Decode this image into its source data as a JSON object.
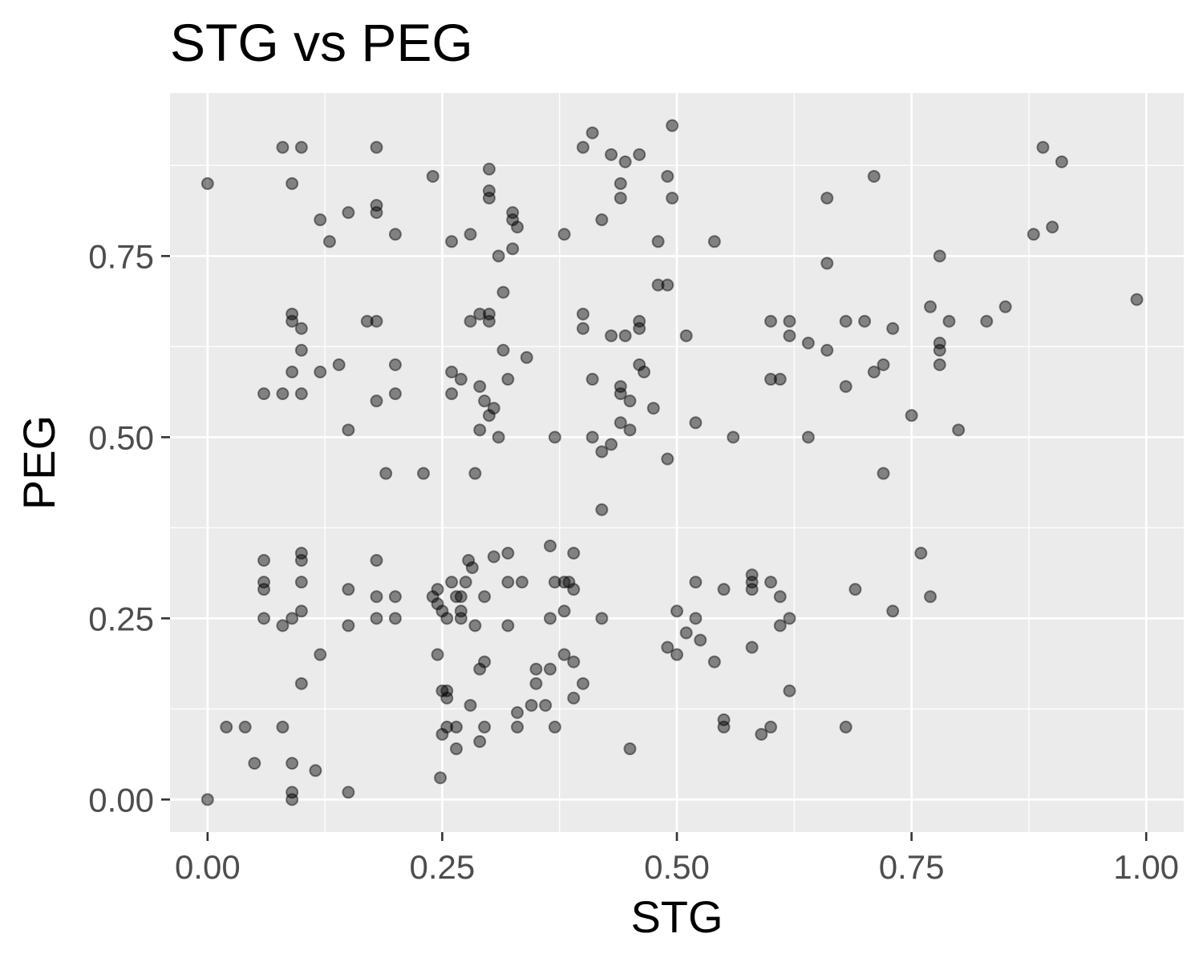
{
  "chart_data": {
    "type": "scatter",
    "title": "STG vs PEG",
    "xlabel": "STG",
    "ylabel": "PEG",
    "xlim": [
      -0.04,
      1.04
    ],
    "ylim": [
      -0.045,
      0.975
    ],
    "x_ticks": [
      0.0,
      0.25,
      0.5,
      0.75,
      1.0
    ],
    "x_tick_labels": [
      "0.00",
      "0.25",
      "0.50",
      "0.75",
      "1.00"
    ],
    "y_ticks": [
      0.0,
      0.25,
      0.5,
      0.75
    ],
    "y_tick_labels": [
      "0.00",
      "0.25",
      "0.50",
      "0.75"
    ],
    "grid": true,
    "point_color": "#000000",
    "point_opacity": 0.45,
    "panel_background": "#ebebeb",
    "points": [
      [
        0.0,
        0.85
      ],
      [
        0.08,
        0.9
      ],
      [
        0.1,
        0.9
      ],
      [
        0.18,
        0.9
      ],
      [
        0.09,
        0.85
      ],
      [
        0.24,
        0.86
      ],
      [
        0.12,
        0.8
      ],
      [
        0.13,
        0.77
      ],
      [
        0.15,
        0.81
      ],
      [
        0.18,
        0.82
      ],
      [
        0.18,
        0.81
      ],
      [
        0.2,
        0.78
      ],
      [
        0.26,
        0.77
      ],
      [
        0.28,
        0.78
      ],
      [
        0.3,
        0.87
      ],
      [
        0.3,
        0.84
      ],
      [
        0.3,
        0.83
      ],
      [
        0.325,
        0.81
      ],
      [
        0.325,
        0.8
      ],
      [
        0.33,
        0.79
      ],
      [
        0.325,
        0.76
      ],
      [
        0.31,
        0.75
      ],
      [
        0.4,
        0.9
      ],
      [
        0.41,
        0.92
      ],
      [
        0.43,
        0.89
      ],
      [
        0.445,
        0.88
      ],
      [
        0.46,
        0.89
      ],
      [
        0.495,
        0.93
      ],
      [
        0.44,
        0.85
      ],
      [
        0.49,
        0.86
      ],
      [
        0.44,
        0.83
      ],
      [
        0.495,
        0.83
      ],
      [
        0.42,
        0.8
      ],
      [
        0.38,
        0.78
      ],
      [
        0.48,
        0.77
      ],
      [
        0.54,
        0.77
      ],
      [
        0.48,
        0.71
      ],
      [
        0.49,
        0.71
      ],
      [
        0.66,
        0.83
      ],
      [
        0.71,
        0.86
      ],
      [
        0.66,
        0.74
      ],
      [
        0.89,
        0.9
      ],
      [
        0.91,
        0.88
      ],
      [
        0.88,
        0.78
      ],
      [
        0.9,
        0.79
      ],
      [
        0.78,
        0.75
      ],
      [
        0.99,
        0.69
      ],
      [
        0.09,
        0.67
      ],
      [
        0.09,
        0.66
      ],
      [
        0.1,
        0.65
      ],
      [
        0.1,
        0.62
      ],
      [
        0.17,
        0.66
      ],
      [
        0.18,
        0.66
      ],
      [
        0.14,
        0.6
      ],
      [
        0.2,
        0.6
      ],
      [
        0.09,
        0.59
      ],
      [
        0.12,
        0.59
      ],
      [
        0.06,
        0.56
      ],
      [
        0.08,
        0.56
      ],
      [
        0.1,
        0.56
      ],
      [
        0.18,
        0.55
      ],
      [
        0.2,
        0.56
      ],
      [
        0.15,
        0.51
      ],
      [
        0.19,
        0.45
      ],
      [
        0.23,
        0.45
      ],
      [
        0.28,
        0.66
      ],
      [
        0.29,
        0.67
      ],
      [
        0.3,
        0.67
      ],
      [
        0.3,
        0.66
      ],
      [
        0.315,
        0.7
      ],
      [
        0.315,
        0.62
      ],
      [
        0.34,
        0.61
      ],
      [
        0.26,
        0.59
      ],
      [
        0.27,
        0.58
      ],
      [
        0.32,
        0.58
      ],
      [
        0.29,
        0.57
      ],
      [
        0.26,
        0.56
      ],
      [
        0.295,
        0.55
      ],
      [
        0.305,
        0.54
      ],
      [
        0.3,
        0.53
      ],
      [
        0.29,
        0.51
      ],
      [
        0.31,
        0.5
      ],
      [
        0.285,
        0.45
      ],
      [
        0.37,
        0.5
      ],
      [
        0.4,
        0.67
      ],
      [
        0.4,
        0.65
      ],
      [
        0.43,
        0.64
      ],
      [
        0.445,
        0.64
      ],
      [
        0.46,
        0.66
      ],
      [
        0.46,
        0.65
      ],
      [
        0.51,
        0.64
      ],
      [
        0.41,
        0.58
      ],
      [
        0.46,
        0.6
      ],
      [
        0.465,
        0.59
      ],
      [
        0.44,
        0.57
      ],
      [
        0.44,
        0.56
      ],
      [
        0.45,
        0.55
      ],
      [
        0.475,
        0.54
      ],
      [
        0.44,
        0.52
      ],
      [
        0.45,
        0.51
      ],
      [
        0.52,
        0.52
      ],
      [
        0.41,
        0.5
      ],
      [
        0.43,
        0.49
      ],
      [
        0.42,
        0.48
      ],
      [
        0.49,
        0.47
      ],
      [
        0.56,
        0.5
      ],
      [
        0.42,
        0.4
      ],
      [
        0.6,
        0.66
      ],
      [
        0.62,
        0.66
      ],
      [
        0.62,
        0.64
      ],
      [
        0.64,
        0.63
      ],
      [
        0.66,
        0.62
      ],
      [
        0.68,
        0.66
      ],
      [
        0.7,
        0.66
      ],
      [
        0.73,
        0.65
      ],
      [
        0.6,
        0.58
      ],
      [
        0.61,
        0.58
      ],
      [
        0.68,
        0.57
      ],
      [
        0.71,
        0.59
      ],
      [
        0.72,
        0.6
      ],
      [
        0.64,
        0.5
      ],
      [
        0.75,
        0.53
      ],
      [
        0.72,
        0.45
      ],
      [
        0.77,
        0.68
      ],
      [
        0.79,
        0.66
      ],
      [
        0.78,
        0.63
      ],
      [
        0.78,
        0.62
      ],
      [
        0.78,
        0.6
      ],
      [
        0.83,
        0.66
      ],
      [
        0.85,
        0.68
      ],
      [
        0.8,
        0.51
      ],
      [
        0.06,
        0.33
      ],
      [
        0.06,
        0.3
      ],
      [
        0.06,
        0.29
      ],
      [
        0.06,
        0.25
      ],
      [
        0.1,
        0.34
      ],
      [
        0.1,
        0.33
      ],
      [
        0.1,
        0.3
      ],
      [
        0.1,
        0.26
      ],
      [
        0.09,
        0.25
      ],
      [
        0.08,
        0.24
      ],
      [
        0.15,
        0.29
      ],
      [
        0.15,
        0.24
      ],
      [
        0.18,
        0.33
      ],
      [
        0.18,
        0.28
      ],
      [
        0.18,
        0.25
      ],
      [
        0.2,
        0.28
      ],
      [
        0.2,
        0.25
      ],
      [
        0.12,
        0.2
      ],
      [
        0.1,
        0.16
      ],
      [
        0.02,
        0.1
      ],
      [
        0.04,
        0.1
      ],
      [
        0.08,
        0.1
      ],
      [
        0.05,
        0.05
      ],
      [
        0.09,
        0.05
      ],
      [
        0.115,
        0.04
      ],
      [
        0.09,
        0.01
      ],
      [
        0.09,
        0.0
      ],
      [
        0.15,
        0.01
      ],
      [
        0.0,
        0.0
      ],
      [
        0.24,
        0.28
      ],
      [
        0.245,
        0.29
      ],
      [
        0.245,
        0.27
      ],
      [
        0.25,
        0.26
      ],
      [
        0.255,
        0.25
      ],
      [
        0.26,
        0.3
      ],
      [
        0.265,
        0.28
      ],
      [
        0.27,
        0.28
      ],
      [
        0.27,
        0.26
      ],
      [
        0.27,
        0.25
      ],
      [
        0.275,
        0.3
      ],
      [
        0.278,
        0.33
      ],
      [
        0.282,
        0.32
      ],
      [
        0.295,
        0.28
      ],
      [
        0.305,
        0.335
      ],
      [
        0.32,
        0.34
      ],
      [
        0.32,
        0.3
      ],
      [
        0.335,
        0.3
      ],
      [
        0.32,
        0.24
      ],
      [
        0.285,
        0.24
      ],
      [
        0.245,
        0.2
      ],
      [
        0.25,
        0.15
      ],
      [
        0.255,
        0.15
      ],
      [
        0.255,
        0.14
      ],
      [
        0.28,
        0.13
      ],
      [
        0.29,
        0.18
      ],
      [
        0.295,
        0.19
      ],
      [
        0.25,
        0.09
      ],
      [
        0.255,
        0.1
      ],
      [
        0.265,
        0.1
      ],
      [
        0.265,
        0.07
      ],
      [
        0.295,
        0.1
      ],
      [
        0.29,
        0.08
      ],
      [
        0.248,
        0.03
      ],
      [
        0.33,
        0.12
      ],
      [
        0.33,
        0.1
      ],
      [
        0.345,
        0.13
      ],
      [
        0.35,
        0.16
      ],
      [
        0.35,
        0.18
      ],
      [
        0.36,
        0.13
      ],
      [
        0.365,
        0.18
      ],
      [
        0.365,
        0.25
      ],
      [
        0.365,
        0.35
      ],
      [
        0.37,
        0.3
      ],
      [
        0.38,
        0.3
      ],
      [
        0.385,
        0.3
      ],
      [
        0.38,
        0.26
      ],
      [
        0.39,
        0.34
      ],
      [
        0.39,
        0.29
      ],
      [
        0.38,
        0.2
      ],
      [
        0.39,
        0.19
      ],
      [
        0.4,
        0.16
      ],
      [
        0.39,
        0.14
      ],
      [
        0.37,
        0.1
      ],
      [
        0.42,
        0.25
      ],
      [
        0.45,
        0.07
      ],
      [
        0.5,
        0.26
      ],
      [
        0.52,
        0.3
      ],
      [
        0.52,
        0.25
      ],
      [
        0.51,
        0.23
      ],
      [
        0.49,
        0.21
      ],
      [
        0.5,
        0.2
      ],
      [
        0.525,
        0.22
      ],
      [
        0.54,
        0.19
      ],
      [
        0.55,
        0.29
      ],
      [
        0.55,
        0.11
      ],
      [
        0.55,
        0.1
      ],
      [
        0.58,
        0.31
      ],
      [
        0.58,
        0.3
      ],
      [
        0.58,
        0.29
      ],
      [
        0.6,
        0.3
      ],
      [
        0.61,
        0.28
      ],
      [
        0.62,
        0.25
      ],
      [
        0.61,
        0.24
      ],
      [
        0.58,
        0.21
      ],
      [
        0.62,
        0.15
      ],
      [
        0.59,
        0.09
      ],
      [
        0.6,
        0.1
      ],
      [
        0.68,
        0.1
      ],
      [
        0.69,
        0.29
      ],
      [
        0.73,
        0.26
      ],
      [
        0.76,
        0.34
      ],
      [
        0.77,
        0.28
      ]
    ]
  }
}
